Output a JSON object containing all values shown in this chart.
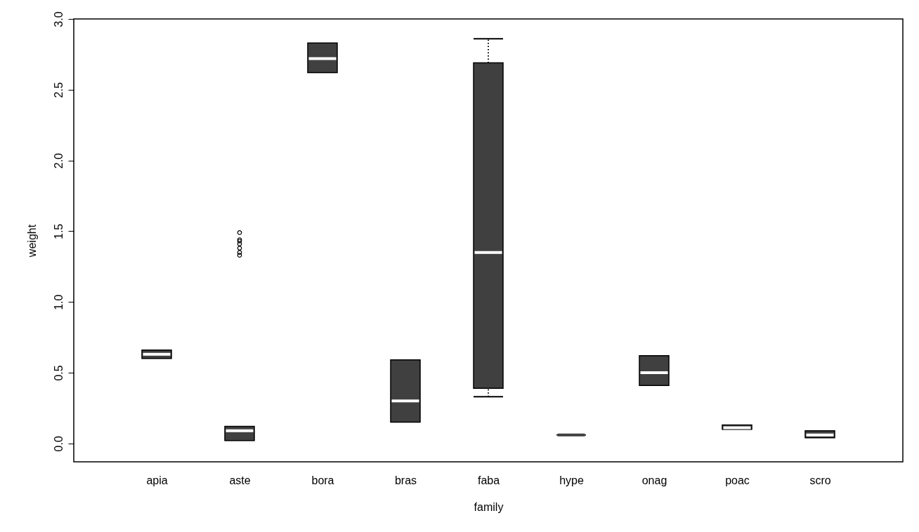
{
  "chart_data": {
    "type": "box",
    "xlabel": "family",
    "ylabel": "weight",
    "categories": [
      "apia",
      "aste",
      "bora",
      "bras",
      "faba",
      "hype",
      "onag",
      "poac",
      "scro"
    ],
    "color": "#404040",
    "line_style": "dotted",
    "grid": false,
    "boxes": [
      {
        "low": 0.6,
        "q1": 0.6,
        "median": 0.63,
        "q3": 0.66,
        "high": 0.66
      },
      {
        "low": 0.02,
        "q1": 0.02,
        "median": 0.09,
        "q3": 0.12,
        "high": 0.12,
        "outliers": [
          1.33,
          1.35,
          1.38,
          1.41,
          1.43,
          1.44,
          1.49
        ]
      },
      {
        "low": 2.62,
        "q1": 2.62,
        "median": 2.72,
        "q3": 2.83,
        "high": 2.83
      },
      {
        "low": 0.15,
        "q1": 0.15,
        "median": 0.3,
        "q3": 0.59,
        "high": 0.59
      },
      {
        "low": 0.33,
        "q1": 0.39,
        "median": 1.35,
        "q3": 2.69,
        "high": 2.86
      },
      {
        "low": 0.06,
        "q1": 0.06,
        "median": 0.06,
        "q3": 0.06,
        "high": 0.06
      },
      {
        "low": 0.41,
        "q1": 0.41,
        "median": 0.5,
        "q3": 0.62,
        "high": 0.62
      },
      {
        "low": 0.1,
        "q1": 0.1,
        "median": 0.11,
        "q3": 0.13,
        "high": 0.13
      },
      {
        "low": 0.04,
        "q1": 0.04,
        "median": 0.06,
        "q3": 0.09,
        "high": 0.09
      }
    ],
    "ylim": [
      -0.13,
      3.0
    ],
    "yticks": [
      {
        "value": 0,
        "label": "0.0"
      },
      {
        "value": 0.5,
        "label": "0.5"
      },
      {
        "value": 1,
        "label": "1.0"
      },
      {
        "value": 1.5,
        "label": "1.5"
      },
      {
        "value": 2,
        "label": "2.0"
      },
      {
        "value": 2.5,
        "label": "2.5"
      },
      {
        "value": 3,
        "label": "3.0"
      }
    ]
  }
}
